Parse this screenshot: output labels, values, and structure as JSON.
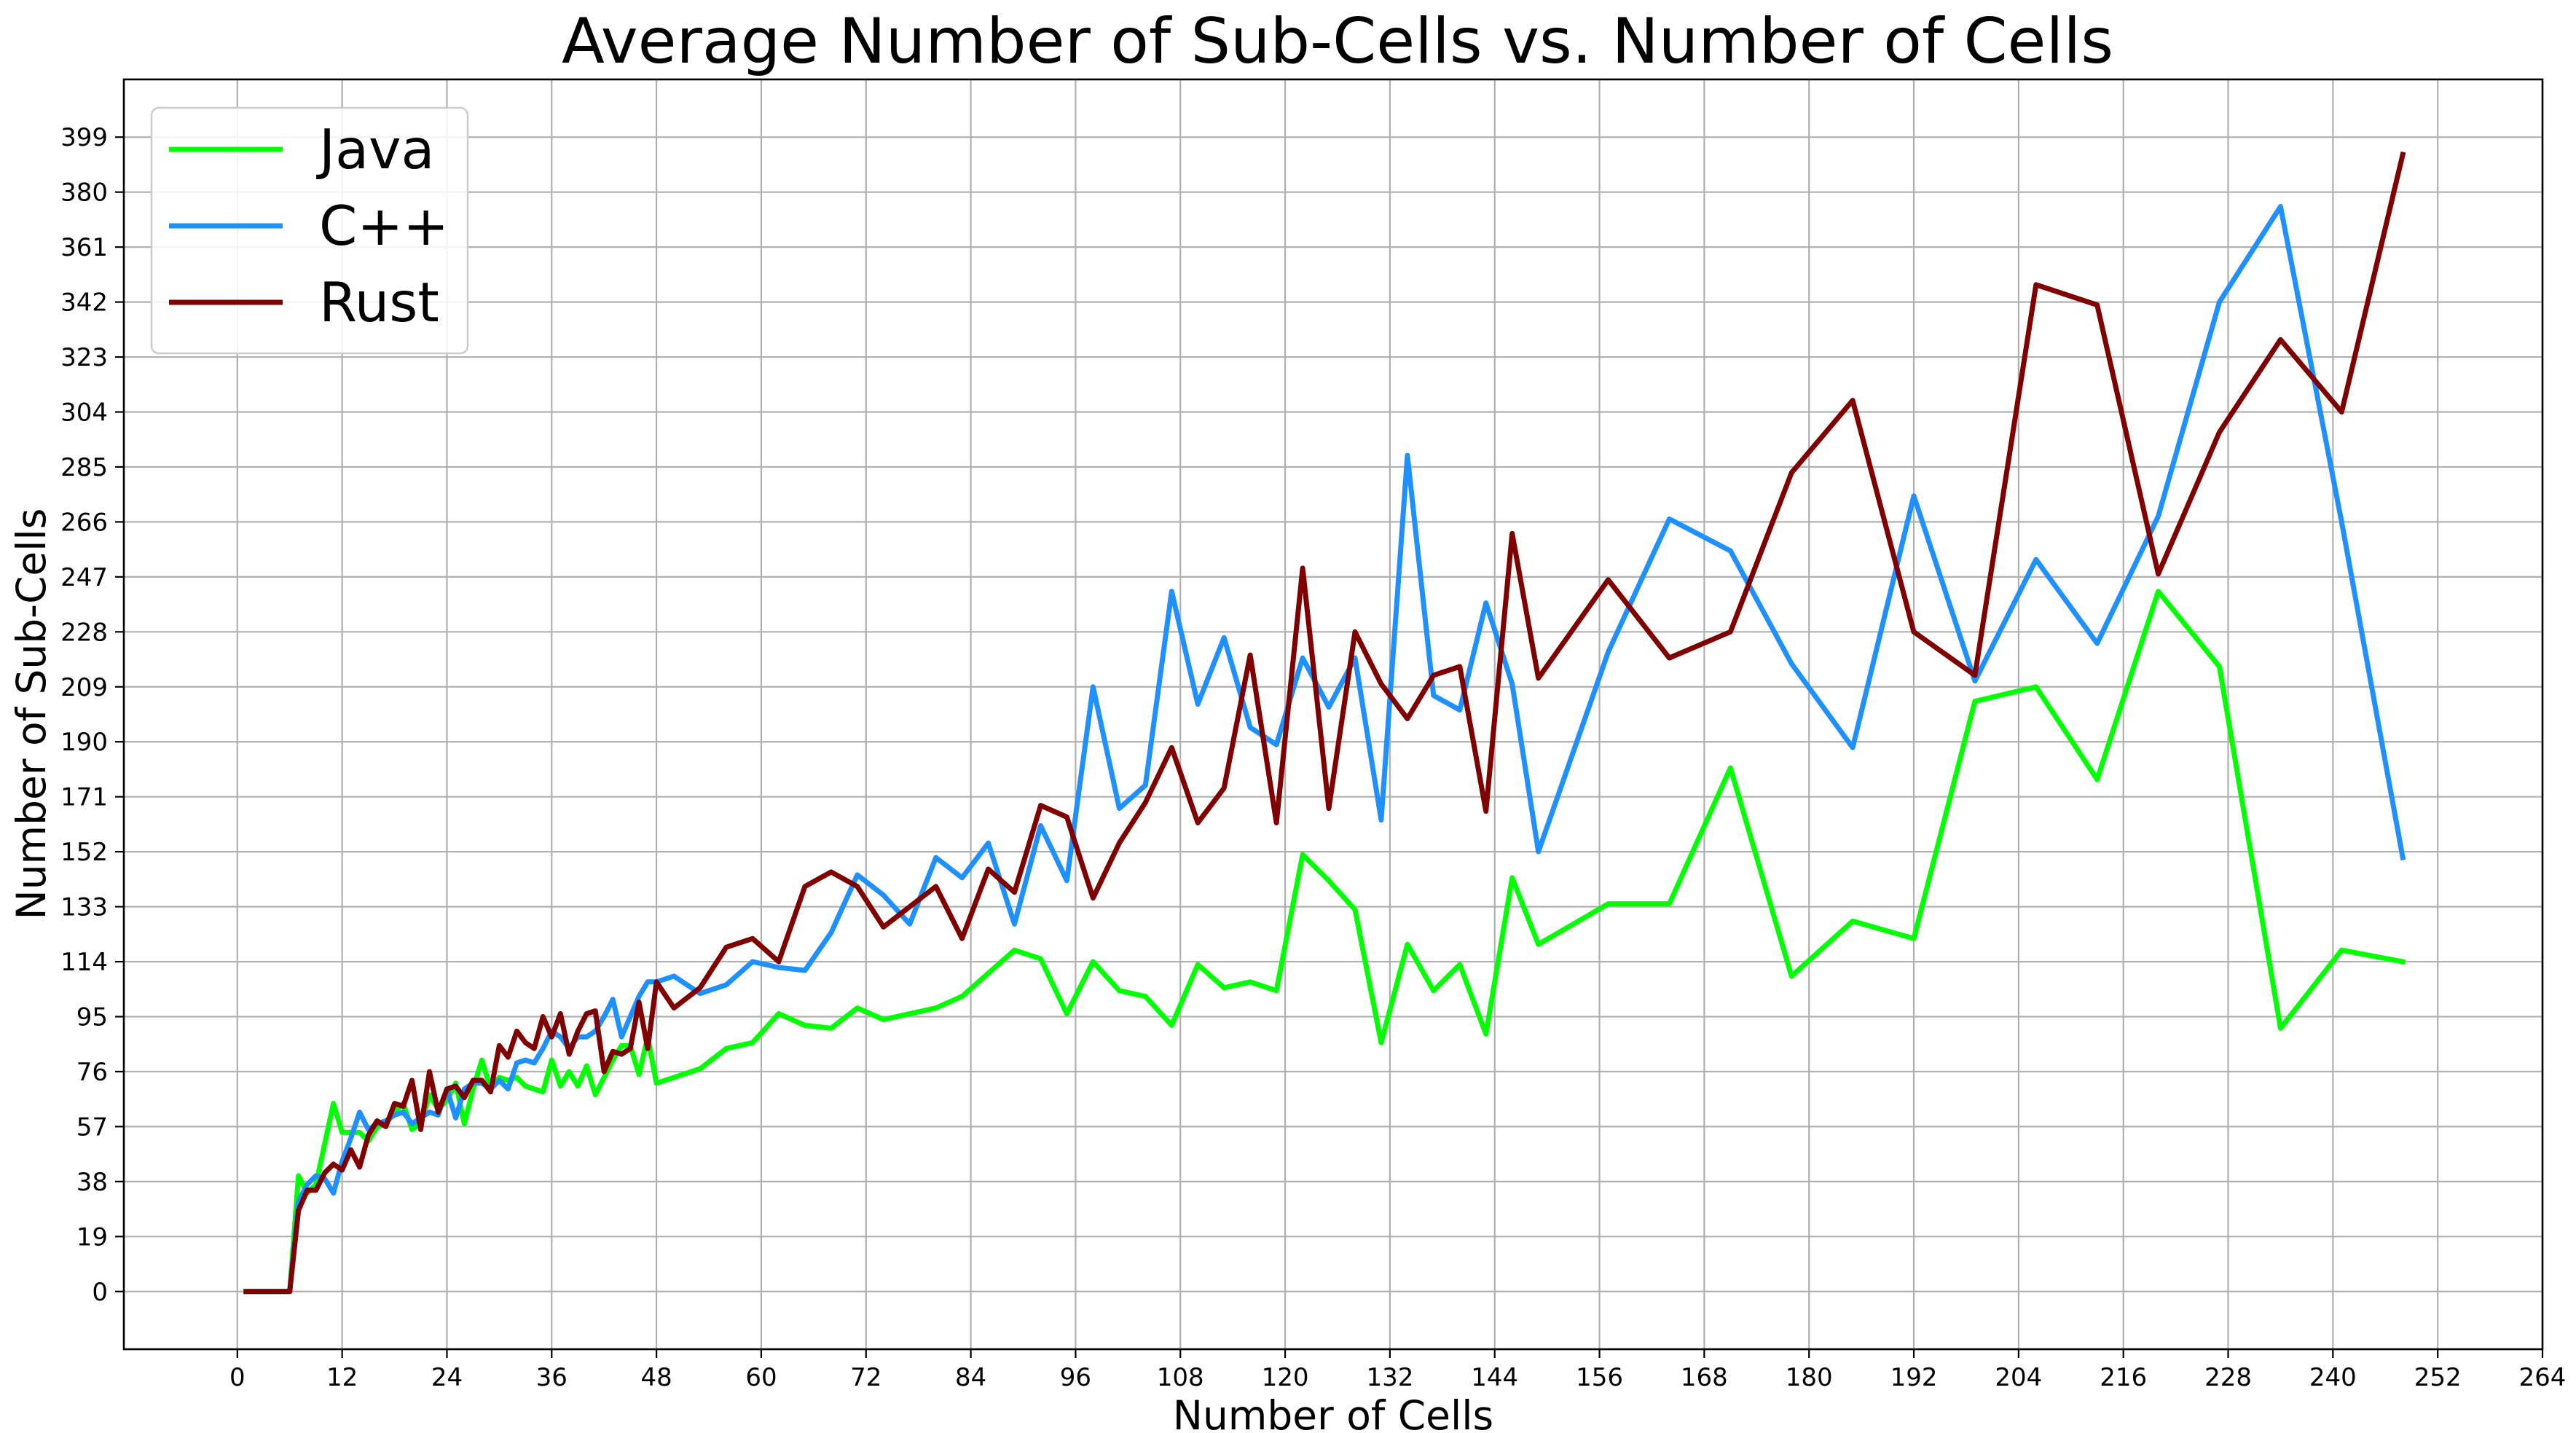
{
  "chart_data": {
    "type": "line",
    "title": "Average Number of Sub-Cells vs. Number of Cells",
    "xlabel": "Number of Cells",
    "ylabel": "Number of Sub-Cells",
    "xlim": [
      -13,
      264
    ],
    "ylim": [
      -19.95,
      418.95
    ],
    "x_ticks": [
      0,
      12,
      24,
      36,
      48,
      60,
      72,
      84,
      96,
      108,
      120,
      132,
      144,
      156,
      168,
      180,
      192,
      204,
      216,
      228,
      240,
      252,
      264
    ],
    "y_ticks": [
      0,
      19,
      38,
      57,
      76,
      95,
      114,
      133,
      152,
      171,
      190,
      209,
      228,
      247,
      266,
      285,
      304,
      323,
      342,
      361,
      380,
      399
    ],
    "grid": true,
    "legend": {
      "position": "top-left"
    },
    "series": [
      {
        "name": "Java",
        "color": "#00ff00",
        "points": [
          [
            1,
            0
          ],
          [
            6,
            0
          ],
          [
            7,
            40
          ],
          [
            8,
            34
          ],
          [
            9,
            37
          ],
          [
            11,
            65
          ],
          [
            12,
            55
          ],
          [
            14,
            55
          ],
          [
            15,
            52
          ],
          [
            16,
            57
          ],
          [
            17,
            58
          ],
          [
            18,
            62
          ],
          [
            19,
            65
          ],
          [
            20,
            56
          ],
          [
            21,
            58
          ],
          [
            22,
            68
          ],
          [
            23,
            63
          ],
          [
            24,
            66
          ],
          [
            25,
            72
          ],
          [
            26,
            58
          ],
          [
            27,
            70
          ],
          [
            28,
            80
          ],
          [
            29,
            70
          ],
          [
            30,
            74
          ],
          [
            31,
            73
          ],
          [
            32,
            74
          ],
          [
            33,
            71
          ],
          [
            34,
            70
          ],
          [
            35,
            69
          ],
          [
            36,
            80
          ],
          [
            37,
            71
          ],
          [
            38,
            76
          ],
          [
            39,
            71
          ],
          [
            40,
            78
          ],
          [
            41,
            68
          ],
          [
            42,
            74
          ],
          [
            43,
            80
          ],
          [
            44,
            85
          ],
          [
            45,
            85
          ],
          [
            46,
            75
          ],
          [
            47,
            88
          ],
          [
            48,
            72
          ],
          [
            50,
            74
          ],
          [
            53,
            77
          ],
          [
            56,
            84
          ],
          [
            59,
            86
          ],
          [
            62,
            96
          ],
          [
            65,
            92
          ],
          [
            68,
            91
          ],
          [
            71,
            98
          ],
          [
            74,
            94
          ],
          [
            77,
            96
          ],
          [
            80,
            98
          ],
          [
            83,
            102
          ],
          [
            86,
            110
          ],
          [
            89,
            118
          ],
          [
            92,
            115
          ],
          [
            95,
            96
          ],
          [
            98,
            114
          ],
          [
            101,
            104
          ],
          [
            104,
            102
          ],
          [
            107,
            92
          ],
          [
            110,
            113
          ],
          [
            113,
            105
          ],
          [
            116,
            107
          ],
          [
            119,
            104
          ],
          [
            122,
            151
          ],
          [
            125,
            142
          ],
          [
            128,
            132
          ],
          [
            131,
            86
          ],
          [
            134,
            120
          ],
          [
            137,
            104
          ],
          [
            140,
            113
          ],
          [
            143,
            89
          ],
          [
            146,
            143
          ],
          [
            149,
            120
          ],
          [
            157,
            134
          ],
          [
            164,
            134
          ],
          [
            171,
            181
          ],
          [
            178,
            109
          ],
          [
            185,
            128
          ],
          [
            192,
            122
          ],
          [
            199,
            204
          ],
          [
            206,
            209
          ],
          [
            213,
            177
          ],
          [
            220,
            242
          ],
          [
            227,
            216
          ],
          [
            234,
            91
          ],
          [
            241,
            118
          ],
          [
            248,
            114
          ]
        ]
      },
      {
        "name": "C++",
        "color": "#1e90ff",
        "points": [
          [
            1,
            0
          ],
          [
            6,
            0
          ],
          [
            7,
            31
          ],
          [
            8,
            37
          ],
          [
            9,
            40
          ],
          [
            10,
            39
          ],
          [
            11,
            34
          ],
          [
            12,
            45
          ],
          [
            13,
            53
          ],
          [
            14,
            62
          ],
          [
            15,
            56
          ],
          [
            16,
            58
          ],
          [
            17,
            59
          ],
          [
            18,
            61
          ],
          [
            19,
            62
          ],
          [
            20,
            58
          ],
          [
            21,
            60
          ],
          [
            22,
            62
          ],
          [
            23,
            61
          ],
          [
            24,
            70
          ],
          [
            25,
            60
          ],
          [
            26,
            70
          ],
          [
            27,
            72
          ],
          [
            28,
            72
          ],
          [
            29,
            70
          ],
          [
            30,
            73
          ],
          [
            31,
            70
          ],
          [
            32,
            79
          ],
          [
            33,
            80
          ],
          [
            34,
            79
          ],
          [
            35,
            84
          ],
          [
            36,
            90
          ],
          [
            37,
            88
          ],
          [
            38,
            84
          ],
          [
            39,
            88
          ],
          [
            40,
            88
          ],
          [
            41,
            90
          ],
          [
            42,
            95
          ],
          [
            43,
            101
          ],
          [
            44,
            88
          ],
          [
            45,
            95
          ],
          [
            46,
            102
          ],
          [
            47,
            107
          ],
          [
            48,
            107
          ],
          [
            50,
            109
          ],
          [
            53,
            103
          ],
          [
            56,
            106
          ],
          [
            59,
            114
          ],
          [
            62,
            112
          ],
          [
            65,
            111
          ],
          [
            68,
            124
          ],
          [
            71,
            144
          ],
          [
            74,
            137
          ],
          [
            77,
            127
          ],
          [
            80,
            150
          ],
          [
            83,
            143
          ],
          [
            86,
            155
          ],
          [
            89,
            127
          ],
          [
            92,
            161
          ],
          [
            95,
            142
          ],
          [
            98,
            209
          ],
          [
            101,
            167
          ],
          [
            104,
            175
          ],
          [
            107,
            242
          ],
          [
            110,
            203
          ],
          [
            113,
            226
          ],
          [
            116,
            195
          ],
          [
            119,
            189
          ],
          [
            122,
            219
          ],
          [
            125,
            202
          ],
          [
            128,
            219
          ],
          [
            131,
            163
          ],
          [
            134,
            289
          ],
          [
            137,
            206
          ],
          [
            140,
            201
          ],
          [
            143,
            238
          ],
          [
            146,
            210
          ],
          [
            149,
            152
          ],
          [
            157,
            221
          ],
          [
            164,
            267
          ],
          [
            171,
            256
          ],
          [
            178,
            217
          ],
          [
            185,
            188
          ],
          [
            192,
            275
          ],
          [
            199,
            211
          ],
          [
            206,
            253
          ],
          [
            213,
            224
          ],
          [
            220,
            268
          ],
          [
            227,
            342
          ],
          [
            234,
            375
          ],
          [
            241,
            266
          ],
          [
            248,
            150
          ]
        ]
      },
      {
        "name": "Rust",
        "color": "#800000",
        "points": [
          [
            1,
            0
          ],
          [
            6,
            0
          ],
          [
            7,
            28
          ],
          [
            8,
            35
          ],
          [
            9,
            35
          ],
          [
            10,
            41
          ],
          [
            11,
            44
          ],
          [
            12,
            42
          ],
          [
            13,
            49
          ],
          [
            14,
            43
          ],
          [
            15,
            54
          ],
          [
            16,
            59
          ],
          [
            17,
            57
          ],
          [
            18,
            65
          ],
          [
            19,
            64
          ],
          [
            20,
            73
          ],
          [
            21,
            56
          ],
          [
            22,
            76
          ],
          [
            23,
            62
          ],
          [
            24,
            70
          ],
          [
            25,
            71
          ],
          [
            26,
            67
          ],
          [
            27,
            73
          ],
          [
            28,
            73
          ],
          [
            29,
            69
          ],
          [
            30,
            85
          ],
          [
            31,
            81
          ],
          [
            32,
            90
          ],
          [
            33,
            86
          ],
          [
            34,
            84
          ],
          [
            35,
            95
          ],
          [
            36,
            88
          ],
          [
            37,
            96
          ],
          [
            38,
            82
          ],
          [
            39,
            90
          ],
          [
            40,
            96
          ],
          [
            41,
            97
          ],
          [
            42,
            76
          ],
          [
            43,
            83
          ],
          [
            44,
            82
          ],
          [
            45,
            84
          ],
          [
            46,
            100
          ],
          [
            47,
            84
          ],
          [
            48,
            107
          ],
          [
            50,
            98
          ],
          [
            53,
            105
          ],
          [
            56,
            119
          ],
          [
            59,
            122
          ],
          [
            62,
            114
          ],
          [
            65,
            140
          ],
          [
            68,
            145
          ],
          [
            71,
            140
          ],
          [
            74,
            126
          ],
          [
            77,
            133
          ],
          [
            80,
            140
          ],
          [
            83,
            122
          ],
          [
            86,
            146
          ],
          [
            89,
            138
          ],
          [
            92,
            168
          ],
          [
            95,
            164
          ],
          [
            98,
            136
          ],
          [
            101,
            155
          ],
          [
            104,
            169
          ],
          [
            107,
            188
          ],
          [
            110,
            162
          ],
          [
            113,
            174
          ],
          [
            116,
            220
          ],
          [
            119,
            162
          ],
          [
            122,
            250
          ],
          [
            125,
            167
          ],
          [
            128,
            228
          ],
          [
            131,
            210
          ],
          [
            134,
            198
          ],
          [
            137,
            213
          ],
          [
            140,
            216
          ],
          [
            143,
            166
          ],
          [
            146,
            262
          ],
          [
            149,
            212
          ],
          [
            157,
            246
          ],
          [
            164,
            219
          ],
          [
            171,
            228
          ],
          [
            178,
            283
          ],
          [
            185,
            308
          ],
          [
            192,
            228
          ],
          [
            199,
            213
          ],
          [
            206,
            348
          ],
          [
            213,
            341
          ],
          [
            220,
            248
          ],
          [
            227,
            297
          ],
          [
            234,
            329
          ],
          [
            241,
            304
          ],
          [
            248,
            393
          ]
        ]
      }
    ]
  }
}
